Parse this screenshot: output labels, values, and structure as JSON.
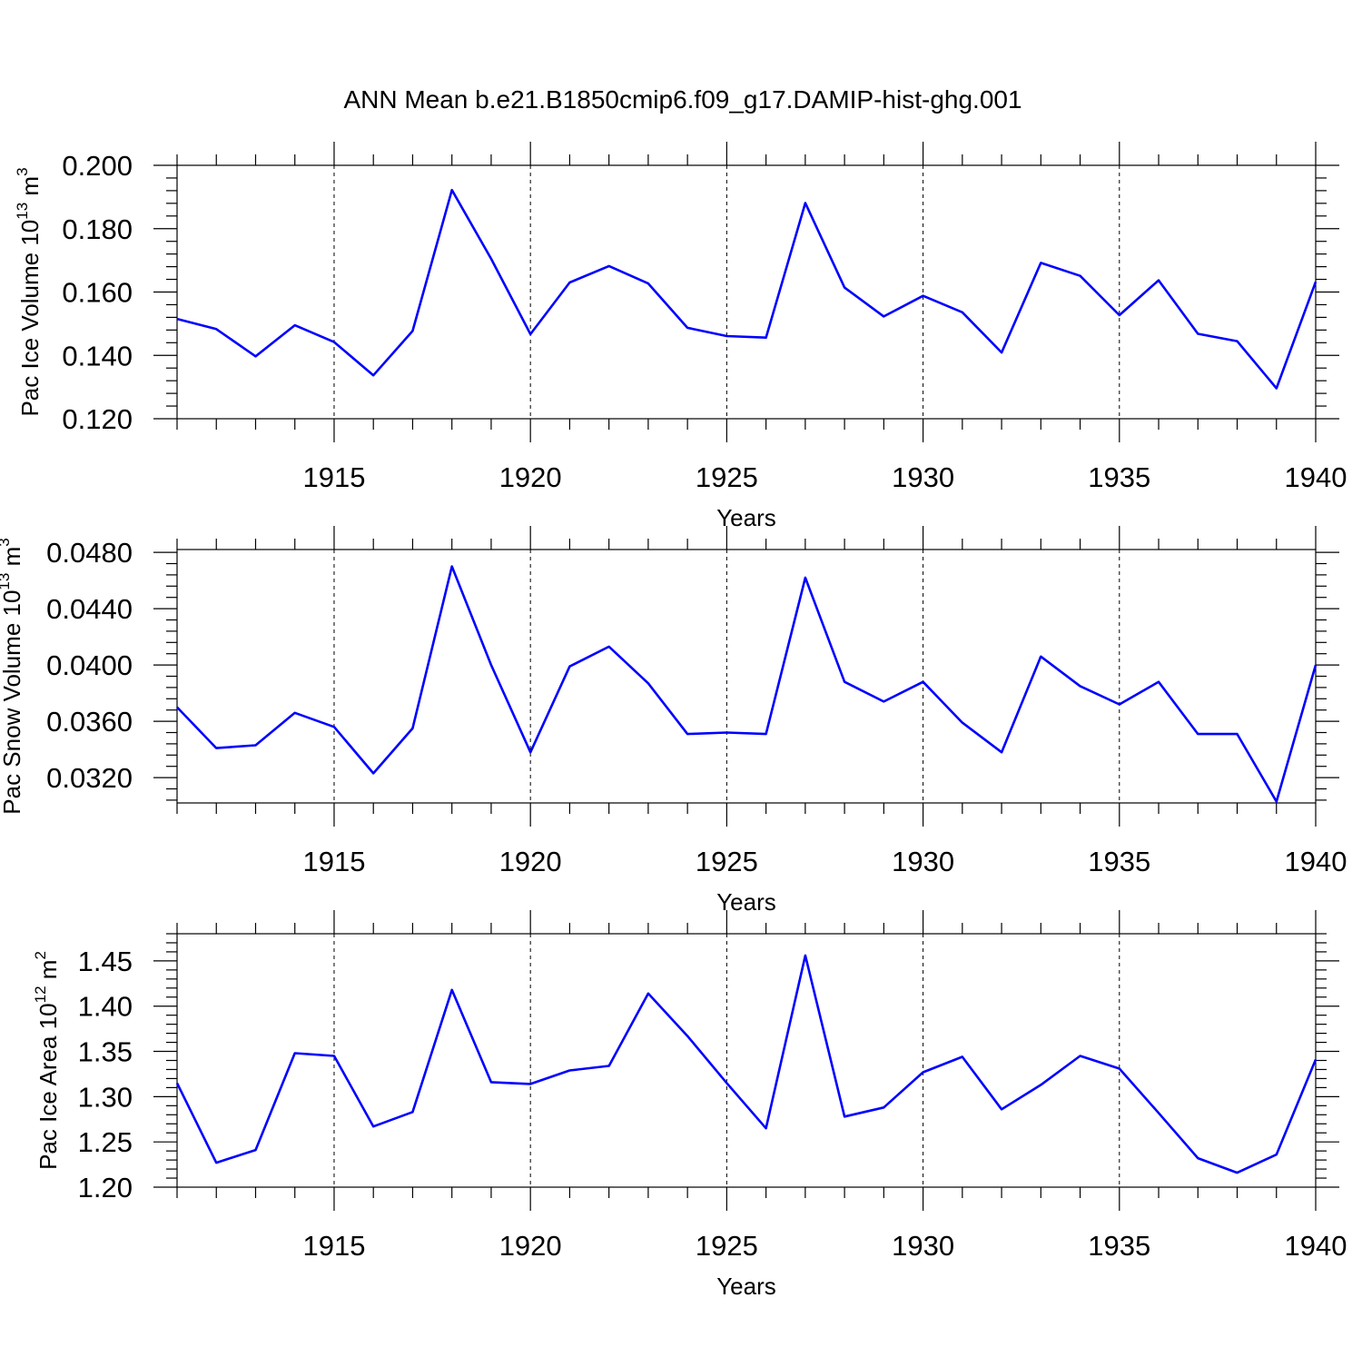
{
  "title": "ANN Mean b.e21.B1850cmip6.f09_g17.DAMIP-hist-ghg.001",
  "colors": {
    "series": "#0000ff",
    "axis": "#000000"
  },
  "chart_data": [
    {
      "type": "line",
      "xlabel": "Years",
      "ylabel": {
        "main": "Pac Ice Volume 10",
        "sup": "13",
        "unit": " m",
        "unit_sup": "3"
      },
      "xlim": [
        1911,
        1940
      ],
      "ylim": [
        0.12,
        0.2
      ],
      "xticks": [
        1915,
        1920,
        1925,
        1930,
        1935,
        1940
      ],
      "xtick_labels": [
        "1915",
        "1920",
        "1925",
        "1930",
        "1935",
        "1940"
      ],
      "yticks": [
        0.12,
        0.14,
        0.16,
        0.18,
        0.2
      ],
      "ytick_labels": [
        "0.120",
        "0.140",
        "0.160",
        "0.180",
        "0.200"
      ],
      "x": [
        1911,
        1912,
        1913,
        1914,
        1915,
        1916,
        1917,
        1918,
        1919,
        1920,
        1921,
        1922,
        1923,
        1924,
        1925,
        1926,
        1927,
        1928,
        1929,
        1930,
        1931,
        1932,
        1933,
        1934,
        1935,
        1936,
        1937,
        1938,
        1939,
        1940
      ],
      "series": [
        {
          "name": "Pac Ice Volume",
          "values": [
            0.1515,
            0.1483,
            0.1397,
            0.1495,
            0.1442,
            0.1337,
            0.1477,
            0.1922,
            0.1705,
            0.1467,
            0.163,
            0.1682,
            0.1627,
            0.1487,
            0.1461,
            0.1456,
            0.1881,
            0.1614,
            0.1523,
            0.1588,
            0.1536,
            0.1409,
            0.1692,
            0.1651,
            0.1527,
            0.1637,
            0.1468,
            0.1445,
            0.1296,
            0.1632
          ]
        }
      ]
    },
    {
      "type": "line",
      "xlabel": "Years",
      "ylabel": {
        "main": "Pac Snow Volume 10",
        "sup": "13",
        "unit": " m",
        "unit_sup": "3"
      },
      "xlim": [
        1911,
        1940
      ],
      "ylim": [
        0.0302,
        0.0482
      ],
      "xticks": [
        1915,
        1920,
        1925,
        1930,
        1935,
        1940
      ],
      "xtick_labels": [
        "1915",
        "1920",
        "1925",
        "1930",
        "1935",
        "1940"
      ],
      "yticks": [
        0.032,
        0.036,
        0.04,
        0.044,
        0.048
      ],
      "ytick_labels": [
        "0.0320",
        "0.0360",
        "0.0400",
        "0.0440",
        "0.0480"
      ],
      "x": [
        1911,
        1912,
        1913,
        1914,
        1915,
        1916,
        1917,
        1918,
        1919,
        1920,
        1921,
        1922,
        1923,
        1924,
        1925,
        1926,
        1927,
        1928,
        1929,
        1930,
        1931,
        1932,
        1933,
        1934,
        1935,
        1936,
        1937,
        1938,
        1939,
        1940
      ],
      "series": [
        {
          "name": "Pac Snow Volume",
          "values": [
            0.037,
            0.0341,
            0.0343,
            0.0366,
            0.0356,
            0.0323,
            0.0355,
            0.047,
            0.04,
            0.0338,
            0.0399,
            0.0413,
            0.0387,
            0.0351,
            0.0352,
            0.0351,
            0.0462,
            0.0388,
            0.0374,
            0.0388,
            0.0359,
            0.0338,
            0.0406,
            0.0385,
            0.0372,
            0.0388,
            0.0351,
            0.0351,
            0.0303,
            0.04
          ]
        }
      ]
    },
    {
      "type": "line",
      "xlabel": "Years",
      "ylabel": {
        "main": "Pac Ice Area 10",
        "sup": "12",
        "unit": " m",
        "unit_sup": "2"
      },
      "xlim": [
        1911,
        1940
      ],
      "ylim": [
        1.2,
        1.48
      ],
      "xticks": [
        1915,
        1920,
        1925,
        1930,
        1935,
        1940
      ],
      "xtick_labels": [
        "1915",
        "1920",
        "1925",
        "1930",
        "1935",
        "1940"
      ],
      "yticks": [
        1.2,
        1.25,
        1.3,
        1.35,
        1.4,
        1.45
      ],
      "ytick_labels": [
        "1.20",
        "1.25",
        "1.30",
        "1.35",
        "1.40",
        "1.45"
      ],
      "x": [
        1911,
        1912,
        1913,
        1914,
        1915,
        1916,
        1917,
        1918,
        1919,
        1920,
        1921,
        1922,
        1923,
        1924,
        1925,
        1926,
        1927,
        1928,
        1929,
        1930,
        1931,
        1932,
        1933,
        1934,
        1935,
        1936,
        1937,
        1938,
        1939,
        1940
      ],
      "series": [
        {
          "name": "Pac Ice Area",
          "values": [
            1.315,
            1.227,
            1.241,
            1.348,
            1.345,
            1.267,
            1.283,
            1.418,
            1.316,
            1.314,
            1.329,
            1.334,
            1.414,
            1.367,
            1.315,
            1.265,
            1.456,
            1.278,
            1.288,
            1.327,
            1.344,
            1.286,
            1.313,
            1.345,
            1.331,
            1.282,
            1.232,
            1.216,
            1.236,
            1.341
          ]
        }
      ]
    }
  ]
}
